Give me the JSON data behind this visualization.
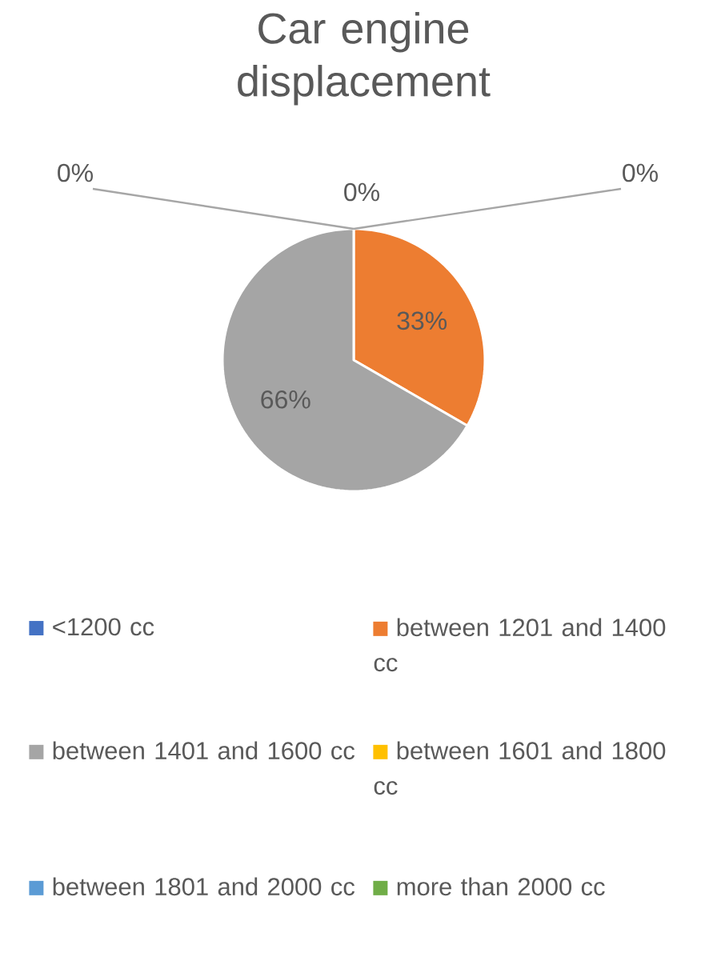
{
  "chart_data": {
    "type": "pie",
    "title": "Car engine displacement",
    "categories": [
      "<1200 cc",
      "between 1201 and 1400 cc",
      "between 1401 and 1600 cc",
      "between 1601 and 1800 cc",
      "between 1801 and 2000 cc",
      "more than 2000 cc"
    ],
    "values": [
      0,
      33,
      66,
      0,
      0,
      0
    ],
    "colors": [
      "#4472c4",
      "#ed7d31",
      "#a5a5a5",
      "#ffc000",
      "#5b9bd5",
      "#70ad47"
    ],
    "value_labels": [
      "0%",
      "33%",
      "66%",
      "0%",
      "0%",
      null
    ],
    "legend": "bottom"
  }
}
